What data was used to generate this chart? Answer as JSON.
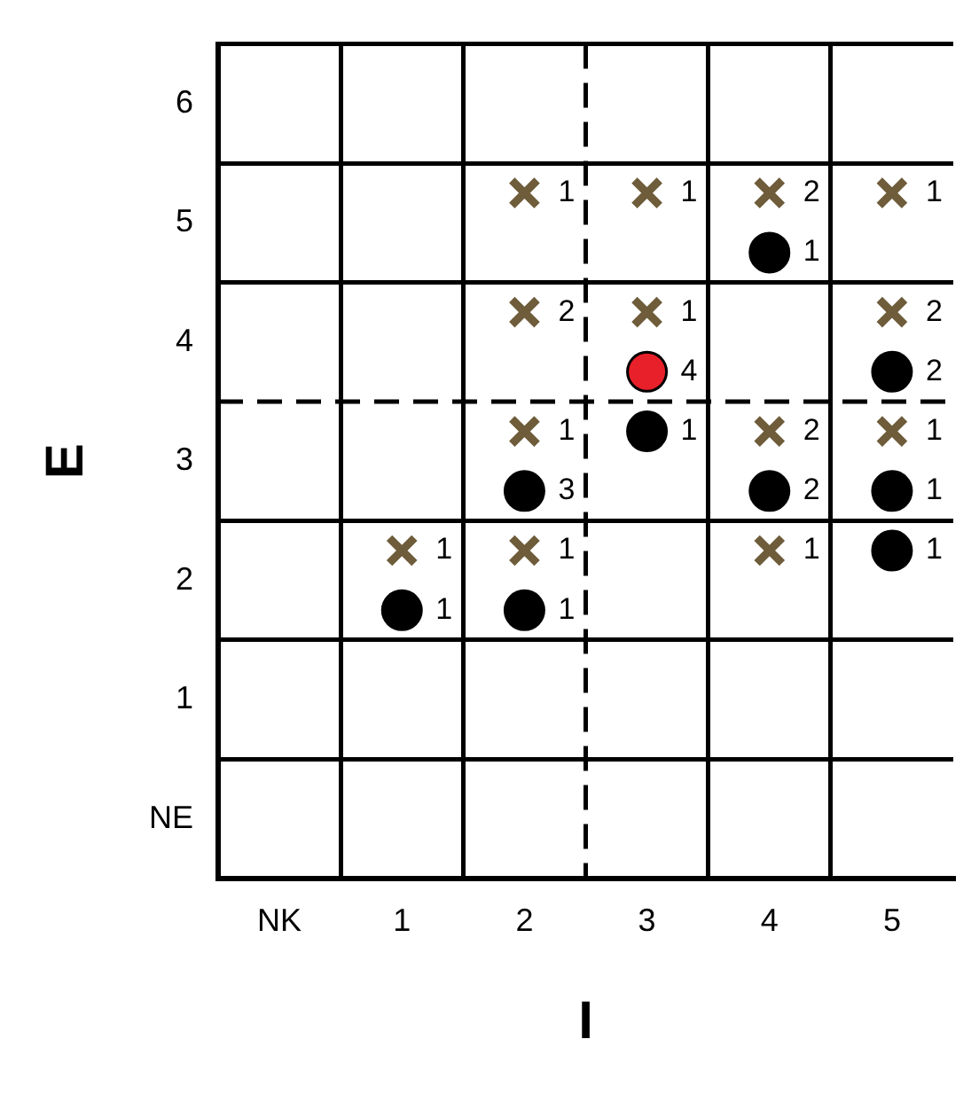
{
  "chart_data": {
    "type": "scatter",
    "xlabel": "I",
    "ylabel": "E",
    "xlim": [
      -0.5,
      5.5
    ],
    "xticks": [
      {
        "value": -0.5,
        "label": null
      },
      {
        "value": 0,
        "label": "NK"
      },
      {
        "value": 0.5,
        "label": null
      },
      {
        "value": 1,
        "label": "1"
      },
      {
        "value": 1.5,
        "label": null
      },
      {
        "value": 2,
        "label": "2"
      },
      {
        "value": 3,
        "label": "3"
      },
      {
        "value": 3.5,
        "label": null
      },
      {
        "value": 4,
        "label": "4"
      },
      {
        "value": 4.5,
        "label": null
      },
      {
        "value": 5,
        "label": "5"
      }
    ],
    "ylim": [
      -0.5,
      6.5
    ],
    "yticks": [
      {
        "value": -0.5,
        "label": null
      },
      {
        "value": 0,
        "label": "NE"
      },
      {
        "value": 0.5,
        "label": null
      },
      {
        "value": 1,
        "label": "1"
      },
      {
        "value": 1.5,
        "label": null
      },
      {
        "value": 2,
        "label": "2"
      },
      {
        "value": 2.5,
        "label": null
      },
      {
        "value": 3,
        "label": "3"
      },
      {
        "value": 4,
        "label": "4"
      },
      {
        "value": 4.5,
        "label": null
      },
      {
        "value": 5,
        "label": "5"
      },
      {
        "value": 5.5,
        "label": null
      },
      {
        "value": 6,
        "label": "6"
      },
      {
        "value": 6.5,
        "label": null
      }
    ],
    "grid": true,
    "ref_lines": [
      {
        "axis": "x",
        "value": 2.5,
        "line_style": "dashed",
        "color": "#000000"
      },
      {
        "axis": "y",
        "value": 3.5,
        "line_style": "dashed",
        "color": "#000000"
      }
    ],
    "series": [
      {
        "marker": "cross",
        "color": "#6e5c3a",
        "x": [
          2,
          3,
          4,
          5,
          2,
          3,
          5,
          2,
          4,
          5,
          1,
          2,
          4
        ],
        "values": [
          5.25,
          5.25,
          5.25,
          5.25,
          4.25,
          4.25,
          4.25,
          3.25,
          3.25,
          3.25,
          2.25,
          2.25,
          2.25
        ]
      },
      {
        "marker": "circle",
        "colors": [
          "#000000",
          "#e8202a",
          "#000000",
          "#000000",
          "#000000",
          "#000000",
          "#000000",
          "#000000",
          "#000000",
          "#000000"
        ],
        "x": [
          4,
          3,
          5,
          3,
          2,
          4,
          5,
          5,
          1,
          2
        ],
        "values": [
          4.75,
          3.75,
          3.75,
          3.25,
          2.75,
          2.75,
          2.75,
          2.25,
          1.75,
          1.75
        ]
      }
    ],
    "annotations": [
      {
        "text": "1",
        "x": 2,
        "y": 5.25
      },
      {
        "text": "1",
        "x": 3,
        "y": 5.25
      },
      {
        "text": "2",
        "x": 4,
        "y": 5.25
      },
      {
        "text": "1",
        "x": 5,
        "y": 5.25
      },
      {
        "text": "2",
        "x": 2,
        "y": 4.25
      },
      {
        "text": "1",
        "x": 3,
        "y": 4.25
      },
      {
        "text": "2",
        "x": 5,
        "y": 4.25
      },
      {
        "text": "1",
        "x": 2,
        "y": 3.25
      },
      {
        "text": "2",
        "x": 4,
        "y": 3.25
      },
      {
        "text": "1",
        "x": 5,
        "y": 3.25
      },
      {
        "text": "1",
        "x": 1,
        "y": 2.25
      },
      {
        "text": "1",
        "x": 2,
        "y": 2.25
      },
      {
        "text": "1",
        "x": 4,
        "y": 2.25
      },
      {
        "text": "1",
        "x": 4,
        "y": 4.75
      },
      {
        "text": "4",
        "x": 3,
        "y": 3.75
      },
      {
        "text": "2",
        "x": 5,
        "y": 3.75
      },
      {
        "text": "1",
        "x": 3,
        "y": 3.25
      },
      {
        "text": "3",
        "x": 2,
        "y": 2.75
      },
      {
        "text": "2",
        "x": 4,
        "y": 2.75
      },
      {
        "text": "1",
        "x": 5,
        "y": 2.75
      },
      {
        "text": "1",
        "x": 5,
        "y": 2.25
      },
      {
        "text": "1",
        "x": 1,
        "y": 1.75
      },
      {
        "text": "1",
        "x": 2,
        "y": 1.75
      }
    ]
  }
}
